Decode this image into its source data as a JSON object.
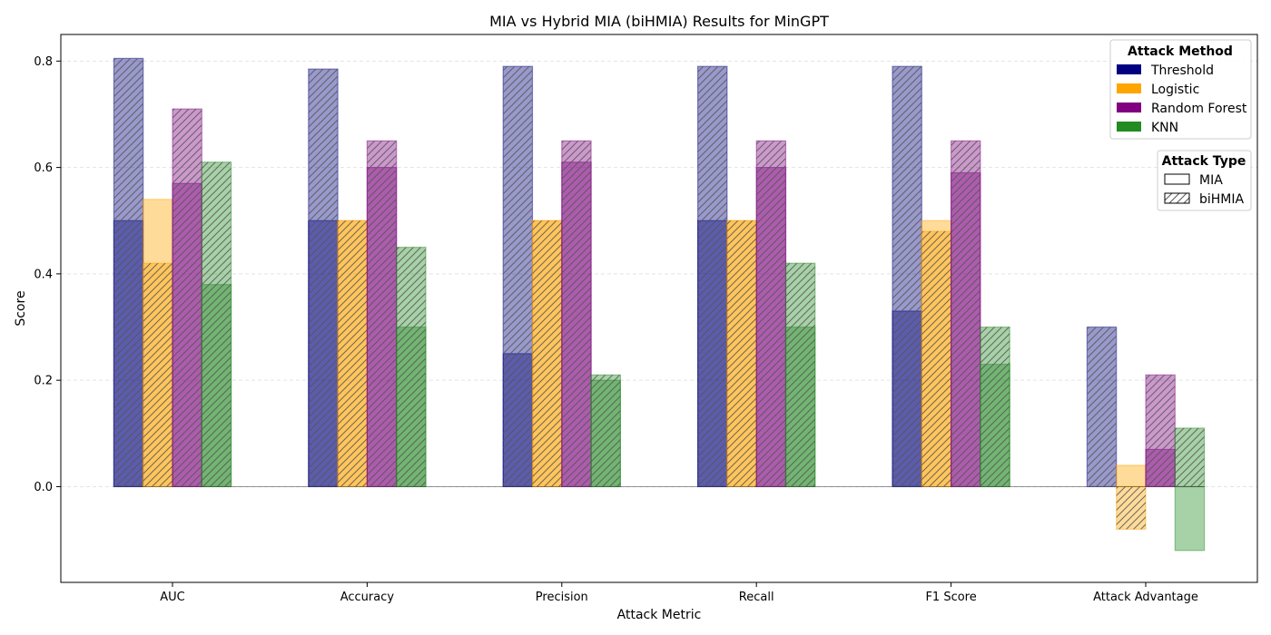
{
  "chart_data": {
    "type": "bar",
    "title": "MIA vs Hybrid MIA (biHMIA) Results for MinGPT",
    "xlabel": "Attack Metric",
    "ylabel": "Score",
    "ylim": [
      -0.18,
      0.85
    ],
    "yticks": [
      0.0,
      0.2,
      0.4,
      0.6,
      0.8
    ],
    "ytick_labels": [
      "0.0",
      "0.2",
      "0.4",
      "0.6",
      "0.8"
    ],
    "grid": "horizontal dashed",
    "categories": [
      "AUC",
      "Accuracy",
      "Precision",
      "Recall",
      "F1 Score",
      "Attack Advantage"
    ],
    "methods": [
      {
        "name": "Threshold",
        "color": "#000080",
        "mia": [
          0.5,
          0.5,
          0.25,
          0.5,
          0.33,
          0.0
        ],
        "bihmia": [
          0.805,
          0.785,
          0.79,
          0.79,
          0.79,
          0.3
        ]
      },
      {
        "name": "Logistic",
        "color": "#FFA500",
        "mia": [
          0.54,
          0.5,
          0.5,
          0.5,
          0.5,
          0.04
        ],
        "bihmia": [
          0.42,
          0.5,
          0.5,
          0.5,
          0.48,
          -0.08
        ]
      },
      {
        "name": "Random Forest",
        "color": "#800080",
        "mia": [
          0.57,
          0.6,
          0.61,
          0.6,
          0.59,
          0.07
        ],
        "bihmia": [
          0.71,
          0.65,
          0.65,
          0.65,
          0.65,
          0.21
        ]
      },
      {
        "name": "KNN",
        "color": "#228B22",
        "mia": [
          0.38,
          0.3,
          0.2,
          0.3,
          0.23,
          -0.12
        ],
        "bihmia": [
          0.61,
          0.45,
          0.21,
          0.42,
          0.3,
          0.11
        ]
      }
    ],
    "legend_method": {
      "title": "Attack Method",
      "placement": "top-right"
    },
    "legend_type": {
      "title": "Attack Type",
      "entries": [
        "MIA",
        "biHMIA"
      ],
      "placement": "upper-right"
    }
  }
}
